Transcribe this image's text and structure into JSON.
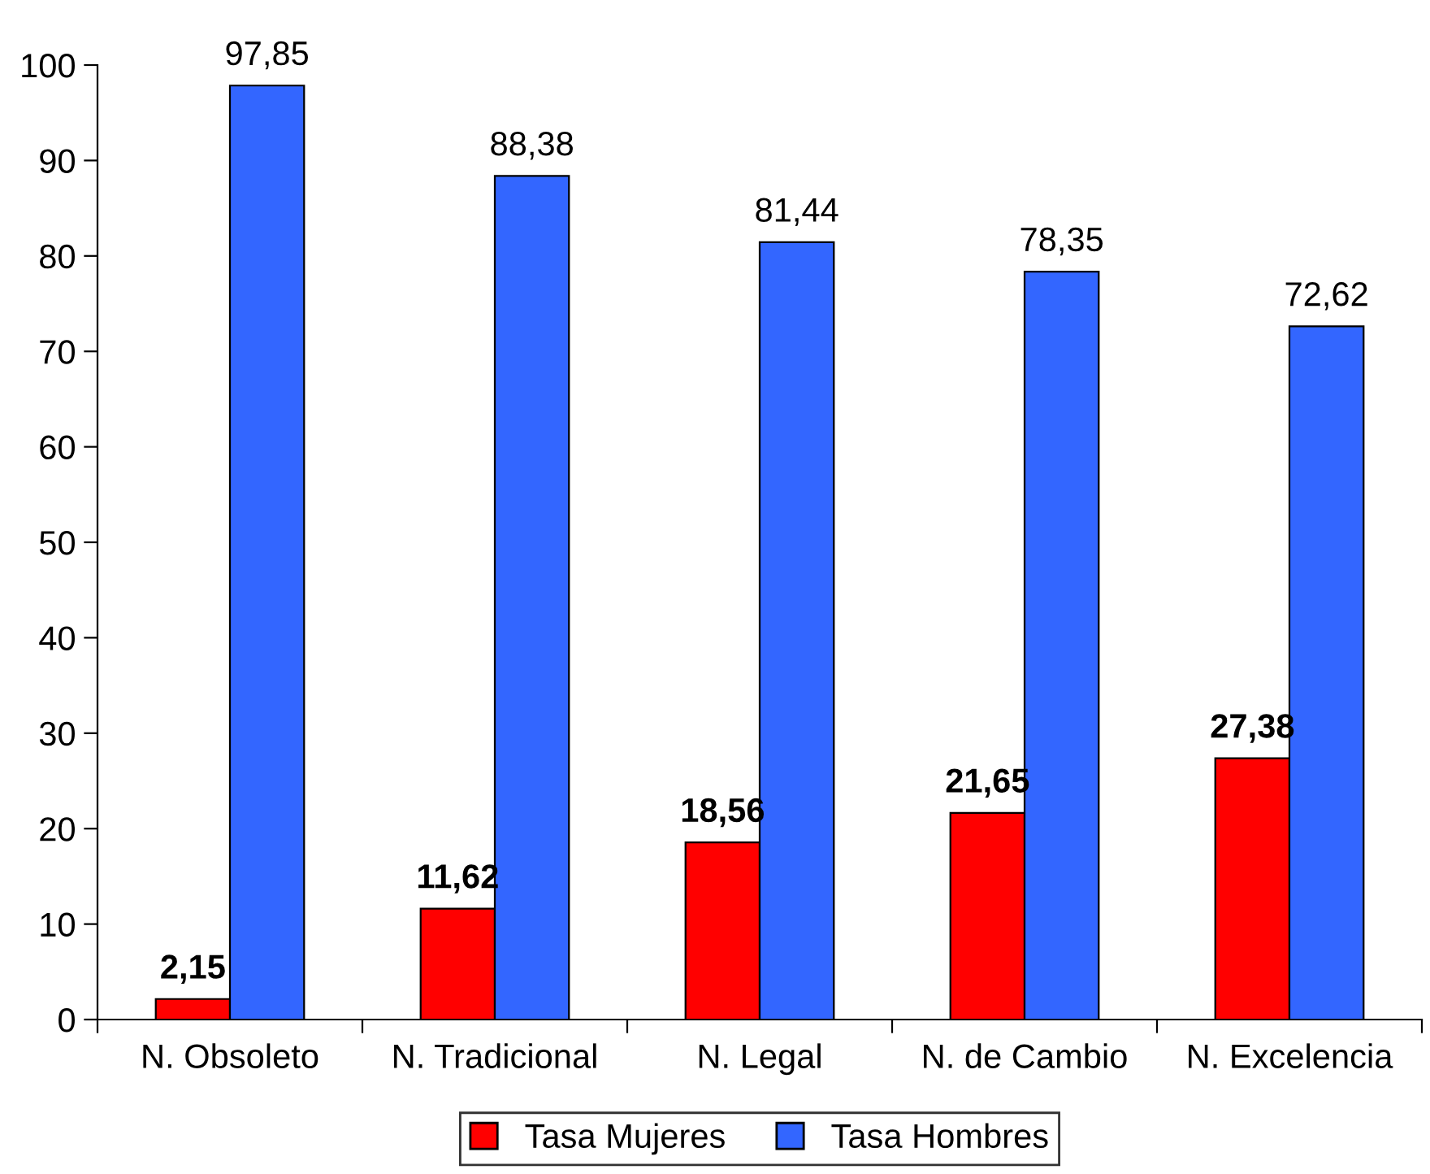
{
  "chart_data": {
    "type": "bar",
    "categories": [
      "N. Obsoleto",
      "N. Tradicional",
      "N. Legal",
      "N. de Cambio",
      "N. Excelencia"
    ],
    "series": [
      {
        "name": "Tasa Mujeres",
        "color": "#ff0000",
        "values": [
          2.15,
          11.62,
          18.56,
          21.65,
          27.38
        ],
        "value_labels": [
          "2,15",
          "11,62",
          "18,56",
          "21,65",
          "27,38"
        ]
      },
      {
        "name": "Tasa Hombres",
        "color": "#3366ff",
        "values": [
          97.85,
          88.38,
          81.44,
          78.35,
          72.62
        ],
        "value_labels": [
          "97,85",
          "88,38",
          "81,44",
          "78,35",
          "72,62"
        ]
      }
    ],
    "ylim": [
      0,
      100
    ],
    "yticks": [
      0,
      10,
      20,
      30,
      40,
      50,
      60,
      70,
      80,
      90,
      100
    ],
    "grid": false,
    "legend": "bottom"
  }
}
